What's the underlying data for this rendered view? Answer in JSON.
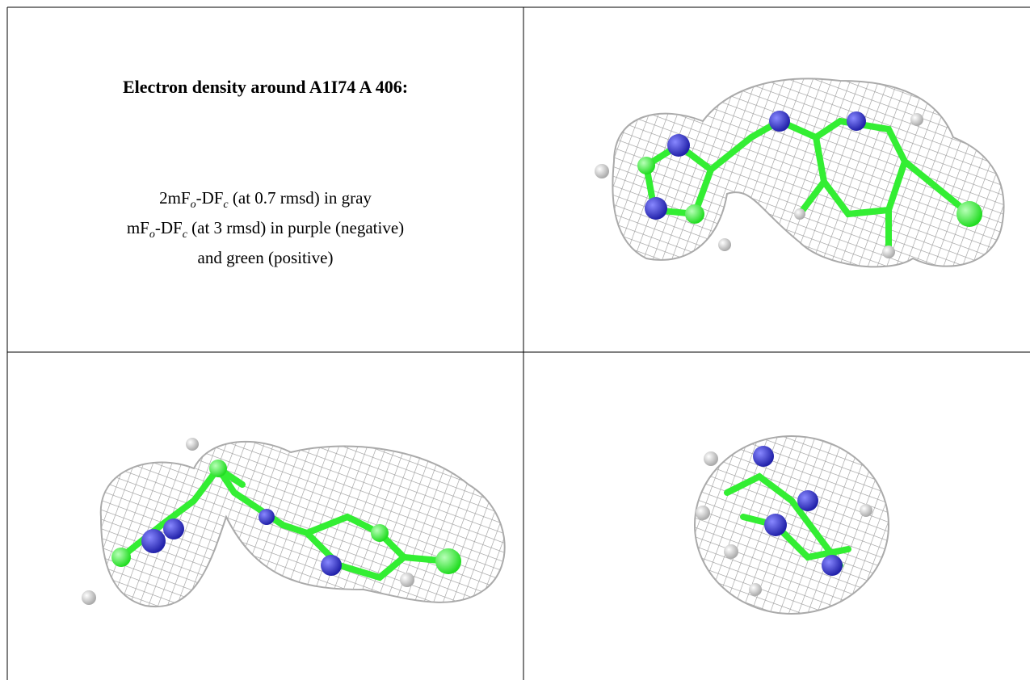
{
  "caption": {
    "title": "Electron density around A1I74 A 406:",
    "lines": [
      [
        "2mF",
        "o",
        "-DF",
        "c",
        " (at 0.7 rmsd) in gray"
      ],
      [
        "mF",
        "o",
        "-DF",
        "c",
        " (at 3 rmsd) in purple (negative)"
      ],
      [
        "and green (positive)"
      ]
    ]
  }
}
